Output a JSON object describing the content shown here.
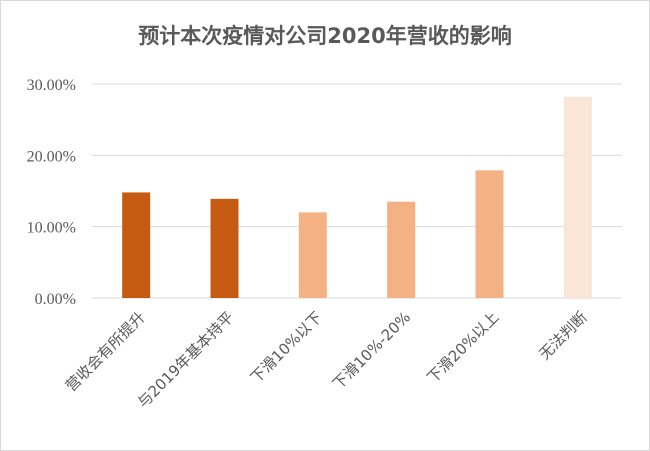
{
  "chart_data": {
    "type": "bar",
    "title": "预计本次疫情对公司2020年营收的影响",
    "categories": [
      "营收会有所提升",
      "与2019年基本持平",
      "下滑10%以下",
      "下滑10%-20%",
      "下滑20%以上",
      "无法判断"
    ],
    "values": [
      14.8,
      13.9,
      12.0,
      13.5,
      17.9,
      28.2
    ],
    "colors": [
      "#c55a11",
      "#c55a11",
      "#f4b183",
      "#f4b183",
      "#f4b183",
      "#fbe5d6"
    ],
    "y_ticks": [
      "0.00%",
      "10.00%",
      "20.00%",
      "30.00%"
    ],
    "y_tick_values": [
      0,
      10,
      20,
      30
    ],
    "ylim": [
      0,
      30
    ],
    "xlabel": "",
    "ylabel": "",
    "grid": true,
    "legend": "none"
  }
}
